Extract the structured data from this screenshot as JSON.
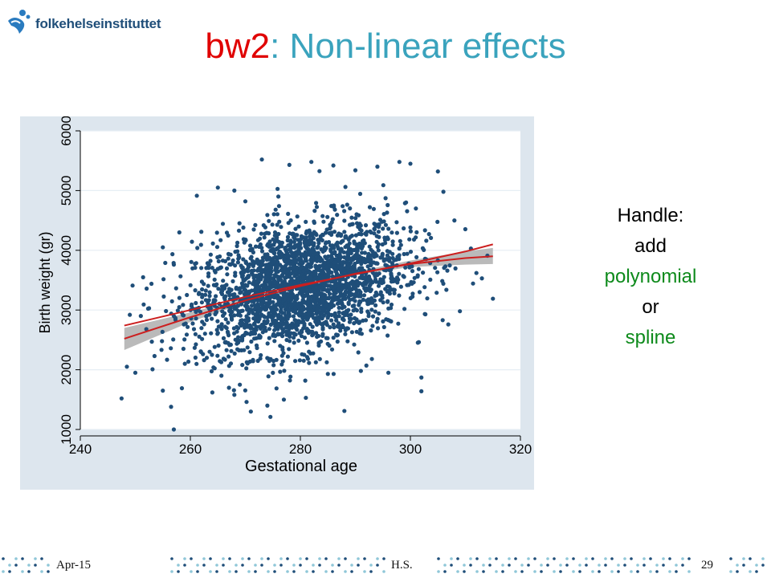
{
  "header": {
    "logo_text": "folkehelseinstituttet",
    "title_part1": "bw2",
    "title_part2": ": Non-linear effects"
  },
  "side_text": {
    "line1": "Handle:",
    "line2": "add",
    "line3": "polynomial",
    "line4": "or",
    "line5": "spline"
  },
  "footer": {
    "date": "Apr-15",
    "author": "H.S.",
    "page_number": "29"
  },
  "chart_data": {
    "type": "scatter",
    "xlabel": "Gestational age",
    "ylabel": "Birth weight (gr)",
    "xlim": [
      240,
      320
    ],
    "ylim": [
      1000,
      6000
    ],
    "xticks": [
      240,
      260,
      280,
      300,
      320
    ],
    "yticks": [
      1000,
      2000,
      3000,
      4000,
      5000,
      6000
    ],
    "grid": true,
    "legend": "none",
    "colors": {
      "points": "#1f4e79",
      "fit_line": "#cc1f1f",
      "ci_band": "#b3b3b3",
      "plot_bg": "#ffffff",
      "panel_bg": "#dde6ee",
      "grid": "#e6eef4"
    },
    "series": [
      {
        "type": "scatter",
        "points": [
          [
            247.5,
            1520
          ],
          [
            249.5,
            3410
          ],
          [
            250,
            1950
          ],
          [
            257,
            1000
          ],
          [
            256.5,
            1380
          ],
          [
            255,
            1650
          ],
          [
            253,
            2470
          ],
          [
            255,
            4050
          ],
          [
            258,
            4300
          ],
          [
            262,
            4310
          ],
          [
            265,
            5050
          ],
          [
            268,
            5000
          ],
          [
            270,
            4820
          ],
          [
            273,
            5520
          ],
          [
            278,
            5430
          ],
          [
            282,
            5480
          ],
          [
            286,
            5420
          ],
          [
            290,
            5340
          ],
          [
            294,
            5400
          ],
          [
            298,
            5480
          ],
          [
            300,
            5450
          ],
          [
            305,
            5320
          ],
          [
            302,
            1870
          ],
          [
            302,
            1640
          ],
          [
            288,
            1310
          ],
          [
            271,
            1300
          ],
          [
            268,
            1580
          ],
          [
            285,
            1930
          ],
          [
            292,
            2070
          ],
          [
            309,
            2980
          ],
          [
            313,
            3530
          ],
          [
            315,
            3190
          ],
          [
            311,
            4030
          ],
          [
            314,
            3910
          ],
          [
            312,
            3620
          ],
          [
            264,
            1620
          ],
          [
            274,
            1400
          ],
          [
            281,
            1530
          ],
          [
            296,
            1950
          ],
          [
            293,
            2180
          ],
          [
            308,
            4500
          ],
          [
            306,
            4980
          ],
          [
            301,
            4700
          ],
          [
            251,
            2900
          ],
          [
            249,
            2920
          ],
          [
            252,
            2680
          ],
          [
            257,
            3760
          ],
          [
            259,
            2100
          ],
          [
            263,
            2200
          ],
          [
            276,
            4900
          ],
          [
            269,
            1750
          ],
          [
            277,
            1500
          ],
          [
            291,
            1980
          ]
        ]
      },
      {
        "type": "line",
        "name": "",
        "points": [
          [
            248,
            2740
          ],
          [
            260,
            3000
          ],
          [
            270,
            3220
          ],
          [
            280,
            3420
          ],
          [
            290,
            3600
          ],
          [
            300,
            3780
          ],
          [
            310,
            3980
          ],
          [
            315,
            4100
          ]
        ]
      },
      {
        "type": "line",
        "name": "",
        "points": [
          [
            248,
            2520
          ],
          [
            260,
            2880
          ],
          [
            270,
            3160
          ],
          [
            280,
            3400
          ],
          [
            290,
            3610
          ],
          [
            300,
            3770
          ],
          [
            310,
            3870
          ],
          [
            315,
            3900
          ]
        ]
      },
      {
        "type": "band",
        "lower": [
          [
            248,
            2330
          ],
          [
            260,
            2800
          ],
          [
            270,
            3120
          ],
          [
            280,
            3380
          ],
          [
            290,
            3580
          ],
          [
            300,
            3720
          ],
          [
            310,
            3760
          ],
          [
            315,
            3770
          ]
        ],
        "upper": [
          [
            248,
            2700
          ],
          [
            260,
            2960
          ],
          [
            270,
            3200
          ],
          [
            280,
            3420
          ],
          [
            290,
            3640
          ],
          [
            300,
            3830
          ],
          [
            310,
            3980
          ],
          [
            315,
            4040
          ]
        ]
      }
    ]
  }
}
